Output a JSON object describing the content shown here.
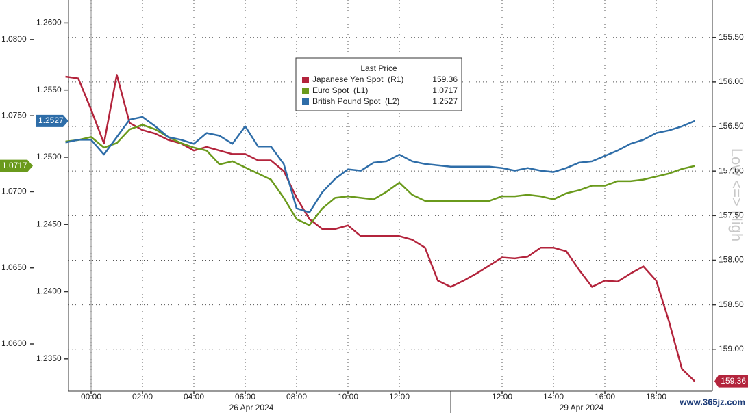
{
  "chart_data": {
    "type": "line",
    "legend_title": "Last Price",
    "categories": [
      null,
      null,
      "00:00",
      null,
      null,
      null,
      "02:00",
      null,
      null,
      null,
      "04:00",
      null,
      null,
      null,
      "06:00",
      null,
      null,
      null,
      "08:00",
      null,
      null,
      null,
      "10:00",
      null,
      null,
      null,
      "12:00",
      null,
      null,
      null,
      null,
      null,
      null,
      null,
      "12:00",
      null,
      null,
      null,
      "14:00",
      null,
      null,
      null,
      "16:00",
      null,
      null,
      null,
      "18:00",
      null,
      null,
      null
    ],
    "date_labels": [
      "26 Apr 2024",
      "29 Apr 2024"
    ],
    "y2label": "Low <=> High",
    "watermark": "www.365jz.com",
    "ylim": [
      1.0569,
      1.0826
    ],
    "yticks": [
      {
        "value": 1.06,
        "label": "1.0600"
      },
      {
        "value": 1.065,
        "label": "1.0650"
      },
      {
        "value": 1.07,
        "label": "1.0700"
      },
      {
        "value": 1.075,
        "label": "1.0750"
      },
      {
        "value": 1.08,
        "label": "1.0800"
      }
    ],
    "y3lim": [
      1.2326,
      1.2617
    ],
    "y3ticks": [
      {
        "value": 1.235,
        "label": "1.2350"
      },
      {
        "value": 1.24,
        "label": "1.2400"
      },
      {
        "value": 1.245,
        "label": "1.2450"
      },
      {
        "value": 1.25,
        "label": "1.2500"
      },
      {
        "value": 1.255,
        "label": "1.2550"
      },
      {
        "value": 1.26,
        "label": "1.2600"
      }
    ],
    "y2lim": [
      159.47,
      155.08
    ],
    "y2ticks": [
      {
        "value": 155.5,
        "label": "155.50"
      },
      {
        "value": 156,
        "label": "156.00"
      },
      {
        "value": 156.5,
        "label": "156.50"
      },
      {
        "value": 157,
        "label": "157.00"
      },
      {
        "value": 157.5,
        "label": "157.50"
      },
      {
        "value": 158,
        "label": "158.00"
      },
      {
        "value": 158.5,
        "label": "158.50"
      },
      {
        "value": 159,
        "label": "159.00"
      }
    ],
    "grid": true,
    "series": [
      {
        "name": "Japanese Yen Spot  (R1)",
        "color": "#b3243c",
        "axis": "y2",
        "values": [
          155.94,
          155.96,
          156.31,
          156.69,
          155.92,
          156.46,
          156.54,
          156.58,
          156.65,
          156.69,
          156.77,
          156.73,
          156.77,
          156.81,
          156.81,
          156.88,
          156.88,
          157.0,
          157.3,
          157.54,
          157.65,
          157.65,
          157.61,
          157.73,
          157.73,
          157.73,
          157.73,
          157.77,
          157.86,
          158.23,
          158.3,
          158.23,
          158.15,
          158.06,
          157.97,
          157.98,
          157.96,
          157.86,
          157.86,
          157.9,
          158.11,
          158.3,
          158.23,
          158.24,
          158.15,
          158.07,
          158.23,
          158.69,
          159.22,
          159.36
        ]
      },
      {
        "name": "Euro Spot  (L1)",
        "color": "#6a9a1c",
        "axis": "y",
        "values": [
          1.0733,
          1.0734,
          1.0736,
          1.0729,
          1.0732,
          1.0741,
          1.0744,
          1.0741,
          1.0736,
          1.0732,
          1.0729,
          1.0727,
          1.0718,
          1.072,
          1.0716,
          1.0712,
          1.0708,
          1.0696,
          1.0682,
          1.0678,
          1.0689,
          1.0696,
          1.0697,
          1.0696,
          1.0695,
          1.07,
          1.0706,
          1.0698,
          1.0694,
          1.0694,
          1.0694,
          1.0694,
          1.0694,
          1.0694,
          1.0697,
          1.0697,
          1.0698,
          1.0697,
          1.0695,
          1.0699,
          1.0701,
          1.0704,
          1.0704,
          1.0707,
          1.0707,
          1.0708,
          1.071,
          1.0712,
          1.0715,
          1.0717
        ]
      },
      {
        "name": "British Pound Spot  (L2)",
        "color": "#2e6da8",
        "axis": "y3",
        "values": [
          1.2511,
          1.2513,
          1.2513,
          1.2502,
          1.2515,
          1.2528,
          1.253,
          1.2523,
          1.2515,
          1.2513,
          1.251,
          1.2518,
          1.2516,
          1.251,
          1.2523,
          1.2508,
          1.2508,
          1.2495,
          1.2462,
          1.2459,
          1.2474,
          1.2484,
          1.2491,
          1.249,
          1.2496,
          1.2497,
          1.2502,
          1.2497,
          1.2495,
          1.2494,
          1.2493,
          1.2493,
          1.2493,
          1.2493,
          1.2492,
          1.249,
          1.2492,
          1.249,
          1.2489,
          1.2492,
          1.2496,
          1.2497,
          1.2501,
          1.2505,
          1.251,
          1.2513,
          1.2518,
          1.252,
          1.2523,
          1.2527
        ]
      }
    ]
  }
}
